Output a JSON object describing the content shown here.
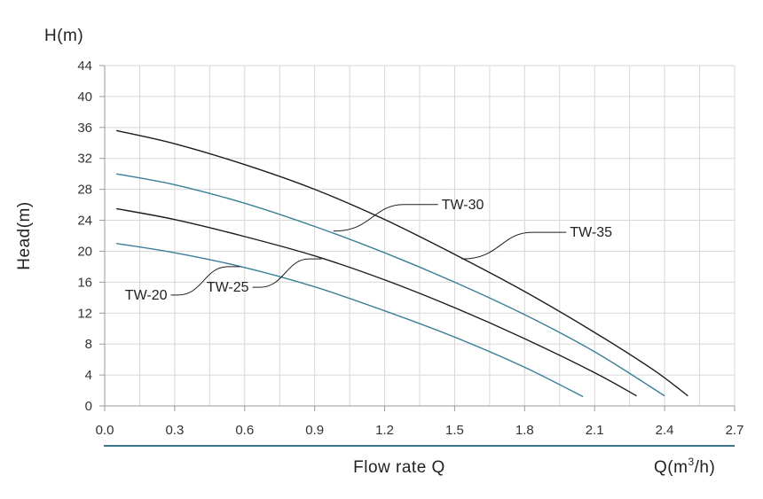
{
  "chart_data": {
    "type": "line",
    "y_unit_label": "H(m)",
    "ylabel": "Head(m)",
    "xlabel": "Flow rate Q",
    "x_unit_label_prefix": "Q(m",
    "x_unit_label_sup": "3",
    "x_unit_label_suffix": "/h)",
    "xlim": [
      0,
      2.7
    ],
    "ylim": [
      0,
      44
    ],
    "x_ticks": [
      "0.0",
      "0.3",
      "0.6",
      "0.9",
      "1.2",
      "1.5",
      "1.8",
      "2.1",
      "2.4",
      "2.7"
    ],
    "y_ticks": [
      "0",
      "4",
      "8",
      "12",
      "16",
      "20",
      "24",
      "28",
      "32",
      "36",
      "40",
      "44"
    ],
    "grid": true,
    "colors": {
      "dark": "#1c1c1c",
      "blue": "#3a7f96",
      "grid": "#d7d7d7",
      "rule": "#3d7388"
    },
    "series": [
      {
        "name": "TW-20",
        "color": "blue",
        "x": [
          0.05,
          0.3,
          0.6,
          0.9,
          1.2,
          1.5,
          1.8,
          2.05
        ],
        "y": [
          21,
          19.8,
          17.9,
          15.4,
          12.3,
          8.9,
          5.0,
          1.2
        ]
      },
      {
        "name": "TW-25",
        "color": "dark",
        "x": [
          0.05,
          0.3,
          0.6,
          0.9,
          1.2,
          1.5,
          1.8,
          2.1,
          2.28
        ],
        "y": [
          25.5,
          24.1,
          21.9,
          19.4,
          16.3,
          12.7,
          8.7,
          4.3,
          1.3
        ]
      },
      {
        "name": "TW-30",
        "color": "blue",
        "x": [
          0.05,
          0.3,
          0.6,
          0.9,
          1.2,
          1.5,
          1.8,
          2.1,
          2.4
        ],
        "y": [
          30,
          28.6,
          26.2,
          23.2,
          19.8,
          16.0,
          11.8,
          7.0,
          1.3
        ]
      },
      {
        "name": "TW-35",
        "color": "dark",
        "x": [
          0.05,
          0.3,
          0.6,
          0.9,
          1.2,
          1.5,
          1.8,
          2.1,
          2.35,
          2.5
        ],
        "y": [
          35.6,
          33.9,
          31.2,
          28.0,
          24.1,
          19.6,
          14.8,
          9.5,
          4.7,
          1.3
        ]
      }
    ],
    "annotations": [
      {
        "text": "TW-20",
        "series": "TW-20",
        "x": 0.58,
        "y": 18.0,
        "side": "left"
      },
      {
        "text": "TW-25",
        "series": "TW-25",
        "x": 0.93,
        "y": 19.0,
        "side": "left"
      },
      {
        "text": "TW-30",
        "series": "TW-30",
        "x": 0.98,
        "y": 22.6,
        "side": "right"
      },
      {
        "text": "TW-35",
        "series": "TW-35",
        "x": 1.53,
        "y": 19.0,
        "side": "right"
      }
    ]
  }
}
